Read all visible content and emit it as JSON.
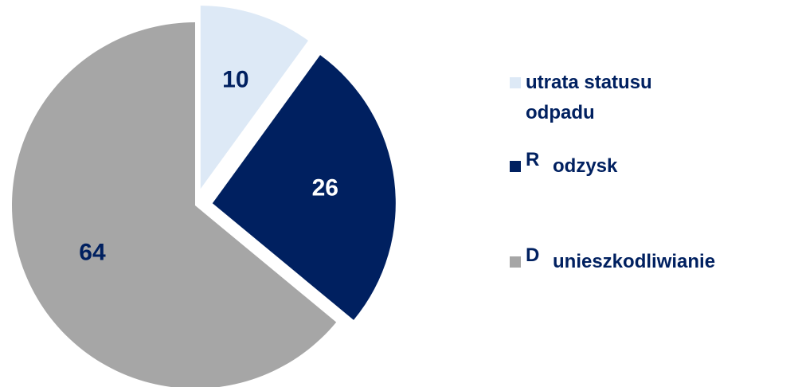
{
  "chart_data": {
    "type": "pie",
    "categories": [
      "utrata statusu odpadu",
      "odzysk",
      "unieszkodliwianie"
    ],
    "codes": [
      null,
      "R",
      "D"
    ],
    "values": [
      10,
      26,
      64
    ],
    "colors": [
      "#dde9f6",
      "#002060",
      "#a6a6a6"
    ],
    "label_colors": [
      "#002060",
      "#ffffff",
      "#002060"
    ],
    "exploded": [
      true,
      true,
      false
    ]
  }
}
